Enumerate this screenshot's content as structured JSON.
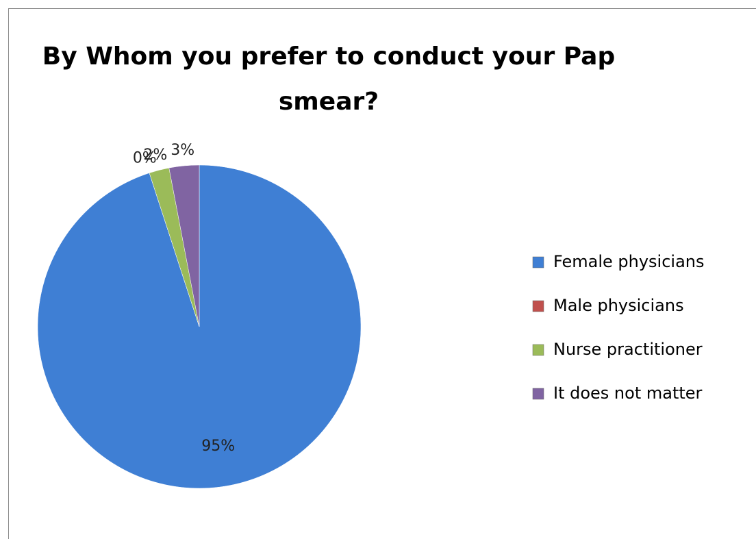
{
  "chart_data": {
    "type": "pie",
    "title": "By Whom you prefer to conduct your Pap smear?",
    "categories": [
      "Female physicians",
      "Male physicians",
      "Nurse practitioner",
      "It does not matter"
    ],
    "values": [
      95,
      0,
      2,
      3
    ],
    "value_labels": [
      "95%",
      "0%",
      "2%",
      "3%"
    ],
    "colors": [
      "#3f7fd4",
      "#c0504d",
      "#9bbb59",
      "#8064a2"
    ],
    "legend": "right"
  }
}
